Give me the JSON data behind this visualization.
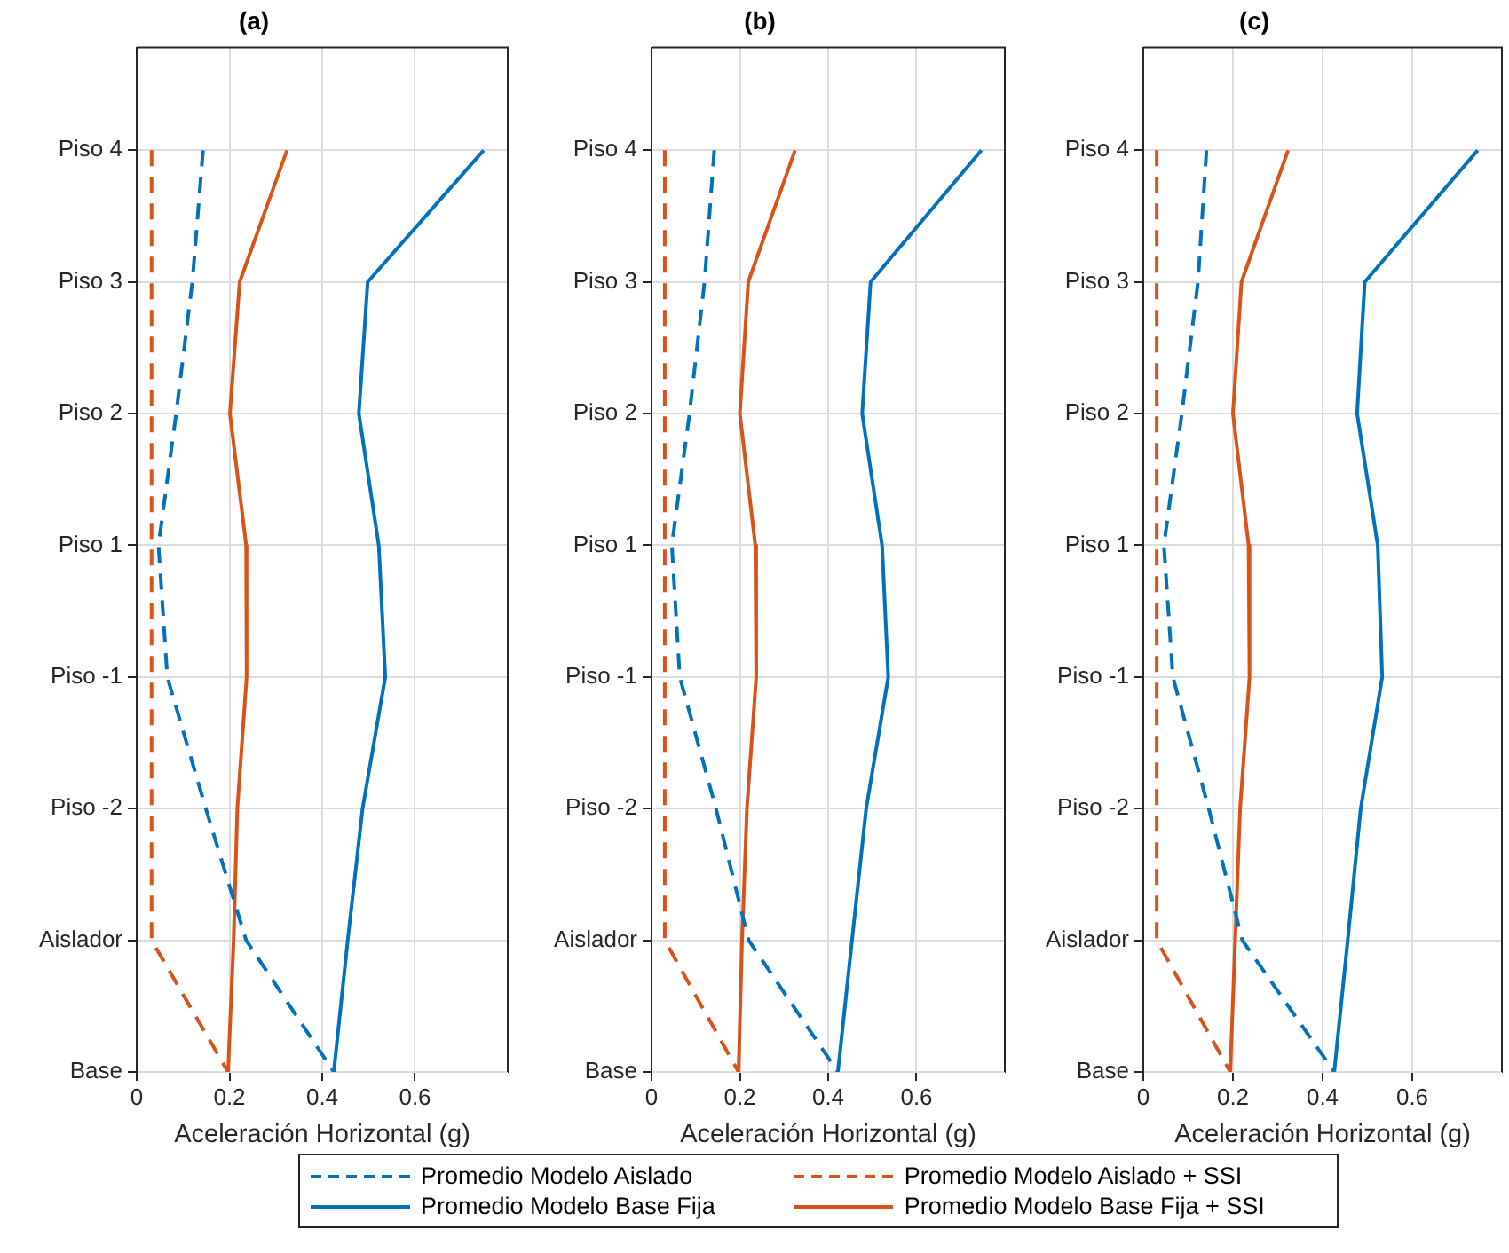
{
  "chart_data": [
    {
      "type": "line",
      "title": "(a)",
      "xlabel": "Aceleración Horizontal (g)",
      "orientation": "horizontal",
      "xlim": [
        0,
        0.8
      ],
      "xticks": [
        0,
        0.2,
        0.4,
        0.6
      ],
      "categories": [
        "Piso 4",
        "Piso 3",
        "Piso 2",
        "Piso 1",
        "Piso -1",
        "Piso -2",
        "Aislador",
        "Base"
      ],
      "grid": true,
      "legend": "bottom",
      "series": [
        {
          "name": "Promedio Modelo Aislado",
          "color": "#0072bd",
          "line_style": "dashed",
          "values": [
            0.143,
            0.12,
            0.085,
            0.047,
            0.066,
            0.149,
            0.236,
            0.425
          ]
        },
        {
          "name": "Promedio Modelo Base Fija",
          "color": "#0072bd",
          "line_style": "solid",
          "values": [
            0.748,
            0.498,
            0.479,
            0.522,
            0.536,
            0.487,
            0.455,
            0.425
          ]
        },
        {
          "name": "Promedio Modelo Aislado + SSI",
          "color": "#d95319",
          "line_style": "dashed",
          "values": [
            0.032,
            0.032,
            0.032,
            0.032,
            0.032,
            0.032,
            0.032,
            0.197
          ]
        },
        {
          "name": "Promedio Modelo Base Fija + SSI",
          "color": "#d95319",
          "line_style": "solid",
          "values": [
            0.324,
            0.222,
            0.201,
            0.236,
            0.237,
            0.217,
            0.209,
            0.197
          ]
        }
      ]
    },
    {
      "type": "line",
      "title": "(b)",
      "xlabel": "Aceleración Horizontal (g)",
      "orientation": "horizontal",
      "xlim": [
        0,
        0.8
      ],
      "xticks": [
        0,
        0.2,
        0.4,
        0.6
      ],
      "categories": [
        "Piso 4",
        "Piso 3",
        "Piso 2",
        "Piso 1",
        "Piso -1",
        "Piso -2",
        "Aislador",
        "Base"
      ],
      "grid": true,
      "series": [
        {
          "color": "#0072bd",
          "line_style": "dashed",
          "values": [
            0.142,
            0.12,
            0.086,
            0.046,
            0.064,
            0.146,
            0.22,
            0.422
          ]
        },
        {
          "color": "#0072bd",
          "line_style": "solid",
          "values": [
            0.747,
            0.496,
            0.477,
            0.522,
            0.536,
            0.486,
            0.454,
            0.422
          ]
        },
        {
          "color": "#d95319",
          "line_style": "dashed",
          "values": [
            0.03,
            0.03,
            0.03,
            0.03,
            0.03,
            0.03,
            0.03,
            0.197
          ]
        },
        {
          "color": "#d95319",
          "line_style": "solid",
          "values": [
            0.325,
            0.219,
            0.2,
            0.235,
            0.237,
            0.216,
            0.205,
            0.197
          ]
        }
      ]
    },
    {
      "type": "line",
      "title": "(c)",
      "xlabel": "Aceleración Horizontal (g)",
      "orientation": "horizontal",
      "xlim": [
        0,
        0.8
      ],
      "xticks": [
        0,
        0.2,
        0.4,
        0.6
      ],
      "categories": [
        "Piso 4",
        "Piso 3",
        "Piso 2",
        "Piso 1",
        "Piso -1",
        "Piso -2",
        "Aislador",
        "Base"
      ],
      "grid": true,
      "series": [
        {
          "color": "#0072bd",
          "line_style": "dashed",
          "values": [
            0.141,
            0.122,
            0.086,
            0.046,
            0.066,
            0.146,
            0.221,
            0.426
          ]
        },
        {
          "color": "#0072bd",
          "line_style": "solid",
          "values": [
            0.746,
            0.494,
            0.477,
            0.523,
            0.533,
            0.485,
            0.456,
            0.426
          ]
        },
        {
          "color": "#d95319",
          "line_style": "dashed",
          "values": [
            0.03,
            0.03,
            0.03,
            0.03,
            0.03,
            0.03,
            0.03,
            0.194
          ]
        },
        {
          "color": "#d95319",
          "line_style": "solid",
          "values": [
            0.323,
            0.219,
            0.2,
            0.235,
            0.237,
            0.216,
            0.205,
            0.194
          ]
        }
      ]
    }
  ]
}
